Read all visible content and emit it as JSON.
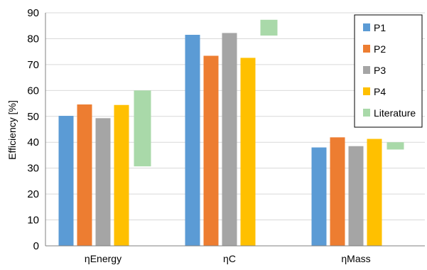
{
  "chart_data": {
    "type": "bar",
    "title": "",
    "xlabel": "",
    "ylabel": "Efficiency [%]",
    "ylim": [
      0,
      90
    ],
    "yticks": [
      0,
      10,
      20,
      30,
      40,
      50,
      60,
      70,
      80,
      90
    ],
    "grid": true,
    "legend_position": "top-right",
    "categories": [
      "ηEnergy",
      "ηC",
      "ηMass"
    ],
    "series": [
      {
        "name": "P1",
        "color": "#5B9BD5",
        "values": [
          50.2,
          81.5,
          38.0
        ]
      },
      {
        "name": "P2",
        "color": "#ED7D31",
        "values": [
          54.6,
          73.4,
          41.9
        ]
      },
      {
        "name": "P3",
        "color": "#A5A5A5",
        "values": [
          49.3,
          82.2,
          38.5
        ]
      },
      {
        "name": "P4",
        "color": "#FFC000",
        "values": [
          54.4,
          72.6,
          41.3
        ]
      }
    ],
    "ranges": {
      "name": "Literature",
      "color": "#A9D9A9",
      "values": [
        [
          30.7,
          60.0
        ],
        [
          81.2,
          87.3
        ],
        [
          37.2,
          40.0
        ]
      ]
    }
  }
}
